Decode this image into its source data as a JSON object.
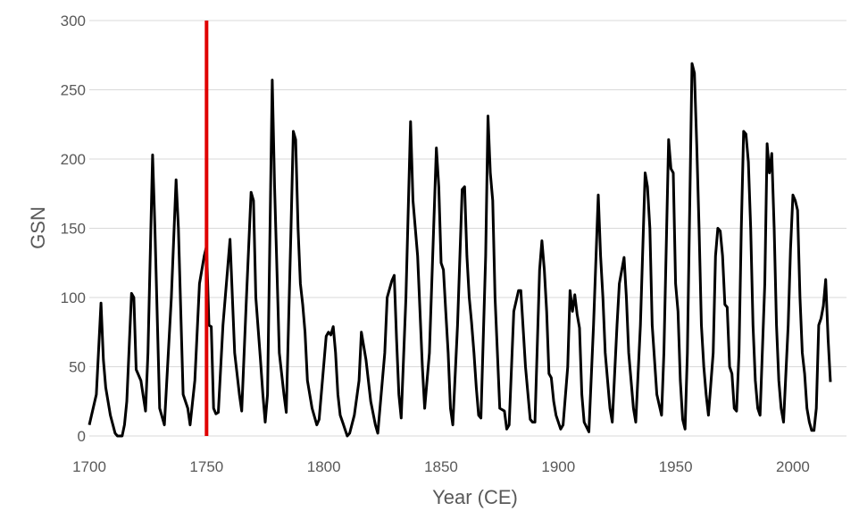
{
  "chart_data": {
    "type": "line",
    "title": "",
    "xlabel": "Year (CE)",
    "ylabel": "GSN",
    "xlim": [
      1700,
      2016
    ],
    "ylim": [
      0,
      300
    ],
    "x_ticks": [
      1700,
      1750,
      1800,
      1850,
      1900,
      1950,
      2000
    ],
    "y_ticks": [
      0,
      50,
      100,
      150,
      200,
      250,
      300
    ],
    "grid": "horizontal",
    "legend": "none",
    "series": [
      {
        "color": "#000000",
        "points": [
          [
            1700,
            8
          ],
          [
            1703,
            30
          ],
          [
            1705,
            96
          ],
          [
            1706,
            55
          ],
          [
            1707,
            35
          ],
          [
            1709,
            15
          ],
          [
            1711,
            2
          ],
          [
            1712,
            0
          ],
          [
            1714,
            0
          ],
          [
            1715,
            8
          ],
          [
            1716,
            25
          ],
          [
            1718,
            103
          ],
          [
            1719,
            100
          ],
          [
            1720,
            48
          ],
          [
            1722,
            40
          ],
          [
            1724,
            18
          ],
          [
            1725,
            60
          ],
          [
            1727,
            203
          ],
          [
            1728,
            150
          ],
          [
            1730,
            20
          ],
          [
            1732,
            8
          ],
          [
            1735,
            100
          ],
          [
            1737,
            185
          ],
          [
            1738,
            150
          ],
          [
            1740,
            30
          ],
          [
            1742,
            20
          ],
          [
            1743,
            8
          ],
          [
            1745,
            40
          ],
          [
            1747,
            110
          ],
          [
            1749,
            130
          ],
          [
            1750,
            137
          ],
          [
            1751,
            80
          ],
          [
            1752,
            79
          ],
          [
            1753,
            20
          ],
          [
            1754,
            16
          ],
          [
            1755,
            17
          ],
          [
            1757,
            80
          ],
          [
            1760,
            142
          ],
          [
            1762,
            60
          ],
          [
            1764,
            30
          ],
          [
            1765,
            18
          ],
          [
            1767,
            100
          ],
          [
            1769,
            176
          ],
          [
            1770,
            170
          ],
          [
            1771,
            100
          ],
          [
            1773,
            55
          ],
          [
            1774,
            30
          ],
          [
            1775,
            10
          ],
          [
            1776,
            30
          ],
          [
            1778,
            257
          ],
          [
            1779,
            180
          ],
          [
            1781,
            60
          ],
          [
            1783,
            30
          ],
          [
            1784,
            17
          ],
          [
            1786,
            150
          ],
          [
            1787,
            220
          ],
          [
            1788,
            214
          ],
          [
            1789,
            150
          ],
          [
            1790,
            110
          ],
          [
            1791,
            95
          ],
          [
            1792,
            75
          ],
          [
            1793,
            40
          ],
          [
            1795,
            20
          ],
          [
            1797,
            8
          ],
          [
            1798,
            12
          ],
          [
            1801,
            72
          ],
          [
            1802,
            75
          ],
          [
            1803,
            73
          ],
          [
            1804,
            79
          ],
          [
            1805,
            60
          ],
          [
            1806,
            30
          ],
          [
            1807,
            15
          ],
          [
            1808,
            10
          ],
          [
            1809,
            5
          ],
          [
            1810,
            0
          ],
          [
            1811,
            2
          ],
          [
            1813,
            15
          ],
          [
            1815,
            40
          ],
          [
            1816,
            75
          ],
          [
            1818,
            55
          ],
          [
            1820,
            25
          ],
          [
            1822,
            8
          ],
          [
            1823,
            2
          ],
          [
            1826,
            60
          ],
          [
            1827,
            100
          ],
          [
            1829,
            112
          ],
          [
            1830,
            116
          ],
          [
            1831,
            70
          ],
          [
            1832,
            30
          ],
          [
            1833,
            13
          ],
          [
            1835,
            100
          ],
          [
            1837,
            227
          ],
          [
            1838,
            170
          ],
          [
            1840,
            130
          ],
          [
            1842,
            50
          ],
          [
            1843,
            20
          ],
          [
            1845,
            60
          ],
          [
            1848,
            208
          ],
          [
            1849,
            180
          ],
          [
            1850,
            125
          ],
          [
            1851,
            120
          ],
          [
            1852,
            90
          ],
          [
            1853,
            60
          ],
          [
            1854,
            20
          ],
          [
            1855,
            8
          ],
          [
            1857,
            80
          ],
          [
            1859,
            178
          ],
          [
            1860,
            180
          ],
          [
            1861,
            130
          ],
          [
            1862,
            100
          ],
          [
            1863,
            82
          ],
          [
            1864,
            60
          ],
          [
            1865,
            35
          ],
          [
            1866,
            15
          ],
          [
            1867,
            13
          ],
          [
            1869,
            130
          ],
          [
            1870,
            231
          ],
          [
            1871,
            190
          ],
          [
            1872,
            170
          ],
          [
            1873,
            100
          ],
          [
            1875,
            20
          ],
          [
            1877,
            18
          ],
          [
            1878,
            5
          ],
          [
            1879,
            8
          ],
          [
            1881,
            90
          ],
          [
            1883,
            105
          ],
          [
            1884,
            105
          ],
          [
            1886,
            50
          ],
          [
            1888,
            12
          ],
          [
            1889,
            10
          ],
          [
            1890,
            10
          ],
          [
            1892,
            120
          ],
          [
            1893,
            141
          ],
          [
            1894,
            120
          ],
          [
            1895,
            90
          ],
          [
            1896,
            45
          ],
          [
            1897,
            42
          ],
          [
            1898,
            25
          ],
          [
            1899,
            15
          ],
          [
            1901,
            5
          ],
          [
            1902,
            8
          ],
          [
            1904,
            50
          ],
          [
            1905,
            105
          ],
          [
            1906,
            90
          ],
          [
            1907,
            102
          ],
          [
            1908,
            88
          ],
          [
            1909,
            78
          ],
          [
            1910,
            30
          ],
          [
            1911,
            10
          ],
          [
            1913,
            3
          ],
          [
            1915,
            80
          ],
          [
            1917,
            174
          ],
          [
            1918,
            130
          ],
          [
            1919,
            100
          ],
          [
            1920,
            60
          ],
          [
            1922,
            20
          ],
          [
            1923,
            10
          ],
          [
            1925,
            80
          ],
          [
            1926,
            110
          ],
          [
            1928,
            129
          ],
          [
            1929,
            100
          ],
          [
            1930,
            60
          ],
          [
            1932,
            20
          ],
          [
            1933,
            10
          ],
          [
            1935,
            80
          ],
          [
            1937,
            190
          ],
          [
            1938,
            180
          ],
          [
            1939,
            150
          ],
          [
            1940,
            80
          ],
          [
            1942,
            30
          ],
          [
            1944,
            15
          ],
          [
            1945,
            60
          ],
          [
            1947,
            214
          ],
          [
            1948,
            193
          ],
          [
            1949,
            190
          ],
          [
            1950,
            110
          ],
          [
            1951,
            90
          ],
          [
            1952,
            40
          ],
          [
            1953,
            12
          ],
          [
            1954,
            5
          ],
          [
            1955,
            60
          ],
          [
            1957,
            269
          ],
          [
            1958,
            262
          ],
          [
            1959,
            210
          ],
          [
            1960,
            150
          ],
          [
            1961,
            80
          ],
          [
            1962,
            50
          ],
          [
            1963,
            30
          ],
          [
            1964,
            15
          ],
          [
            1966,
            60
          ],
          [
            1967,
            130
          ],
          [
            1968,
            150
          ],
          [
            1969,
            148
          ],
          [
            1970,
            130
          ],
          [
            1971,
            95
          ],
          [
            1972,
            93
          ],
          [
            1973,
            50
          ],
          [
            1974,
            45
          ],
          [
            1975,
            20
          ],
          [
            1976,
            18
          ],
          [
            1977,
            60
          ],
          [
            1978,
            150
          ],
          [
            1979,
            220
          ],
          [
            1980,
            218
          ],
          [
            1981,
            198
          ],
          [
            1982,
            150
          ],
          [
            1983,
            80
          ],
          [
            1984,
            40
          ],
          [
            1985,
            20
          ],
          [
            1986,
            15
          ],
          [
            1988,
            110
          ],
          [
            1989,
            211
          ],
          [
            1990,
            190
          ],
          [
            1991,
            204
          ],
          [
            1992,
            150
          ],
          [
            1993,
            80
          ],
          [
            1994,
            40
          ],
          [
            1995,
            20
          ],
          [
            1996,
            10
          ],
          [
            1998,
            80
          ],
          [
            1999,
            135
          ],
          [
            2000,
            174
          ],
          [
            2001,
            170
          ],
          [
            2002,
            163
          ],
          [
            2003,
            100
          ],
          [
            2004,
            60
          ],
          [
            2005,
            45
          ],
          [
            2006,
            20
          ],
          [
            2007,
            10
          ],
          [
            2008,
            4
          ],
          [
            2009,
            4
          ],
          [
            2010,
            20
          ],
          [
            2011,
            80
          ],
          [
            2012,
            85
          ],
          [
            2013,
            94
          ],
          [
            2014,
            113
          ],
          [
            2015,
            70
          ],
          [
            2016,
            39
          ]
        ]
      }
    ],
    "marker_line": {
      "x": 1750,
      "color": "#e00000"
    }
  }
}
